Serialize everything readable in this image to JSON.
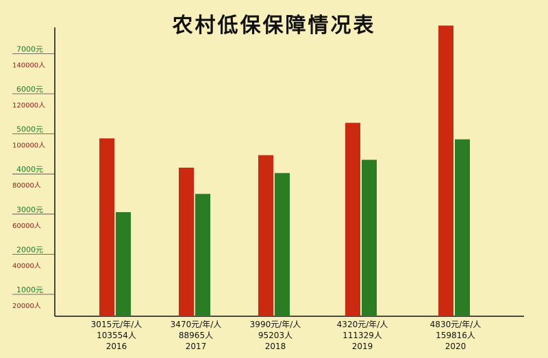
{
  "chart_data": {
    "type": "bar",
    "title": "农村低保保障情况表",
    "categories": [
      "2016",
      "2017",
      "2018",
      "2019",
      "2020"
    ],
    "category_labels": [
      {
        "standard": "3015元/年/人",
        "population": "103554人",
        "year": "2016"
      },
      {
        "standard": "3470元/年/人",
        "population": "88965人",
        "year": "2017"
      },
      {
        "standard": "3990元/年/人",
        "population": "95203人",
        "year": "2018"
      },
      {
        "standard": "4320元/年/人",
        "population": "111329人",
        "year": "2019"
      },
      {
        "standard": "4830元/年/人",
        "population": "159816人",
        "year": "2020"
      }
    ],
    "series": [
      {
        "values": [
          103554,
          88965,
          95203,
          111329,
          159816
        ],
        "color": "#cc2a10",
        "axis": "persons"
      },
      {
        "values": [
          3015,
          3470,
          3990,
          4320,
          4830
        ],
        "color": "#2a7d23",
        "axis": "yuan"
      }
    ],
    "y_ticks_yuan": [
      "1000元",
      "2000元",
      "3000元",
      "4000元",
      "5000元",
      "6000元",
      "7000元"
    ],
    "y_ticks_persons": [
      "20000人",
      "40000人",
      "60000人",
      "80000人",
      "100000人",
      "120000人",
      "140000人"
    ],
    "yuan_tick_values": [
      1000,
      2000,
      3000,
      4000,
      5000,
      6000,
      7000
    ],
    "person_tick_values": [
      20000,
      40000,
      60000,
      80000,
      100000,
      120000,
      140000
    ],
    "legend": "none",
    "grid": false
  }
}
